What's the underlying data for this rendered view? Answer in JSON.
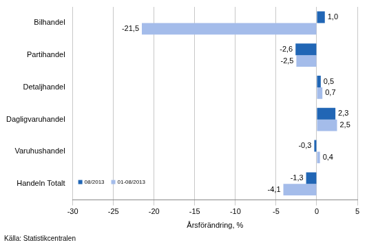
{
  "chart_data": {
    "type": "bar",
    "orientation": "horizontal",
    "categories": [
      "Bilhandel",
      "Partihandel",
      "Detaljhandel",
      "Dagligvaruhandel",
      "Varuhushandel",
      "Handeln Totalt"
    ],
    "series": [
      {
        "name": "08/2013",
        "color": "#2166b5",
        "values": [
          1.0,
          -2.6,
          0.5,
          2.3,
          -0.3,
          -1.3
        ],
        "value_labels": [
          "1,0",
          "-2,6",
          "0,5",
          "2,3",
          "-0,3",
          "-1,3"
        ]
      },
      {
        "name": "01-08/2013",
        "color": "#a4bcea",
        "values": [
          -21.5,
          -2.5,
          0.7,
          2.5,
          0.4,
          -4.1
        ],
        "value_labels": [
          "-21,5",
          "-2,5",
          "0,7",
          "2,5",
          "0,4",
          "-4,1"
        ]
      }
    ],
    "xlabel": "Årsförändring, %",
    "source": "Källa: Statistikcentralen",
    "xlim": [
      -30,
      5
    ],
    "xticks": [
      -30,
      -25,
      -20,
      -15,
      -10,
      -5,
      0,
      5
    ],
    "grid": true,
    "legend": "lower left",
    "data_labels": true
  }
}
